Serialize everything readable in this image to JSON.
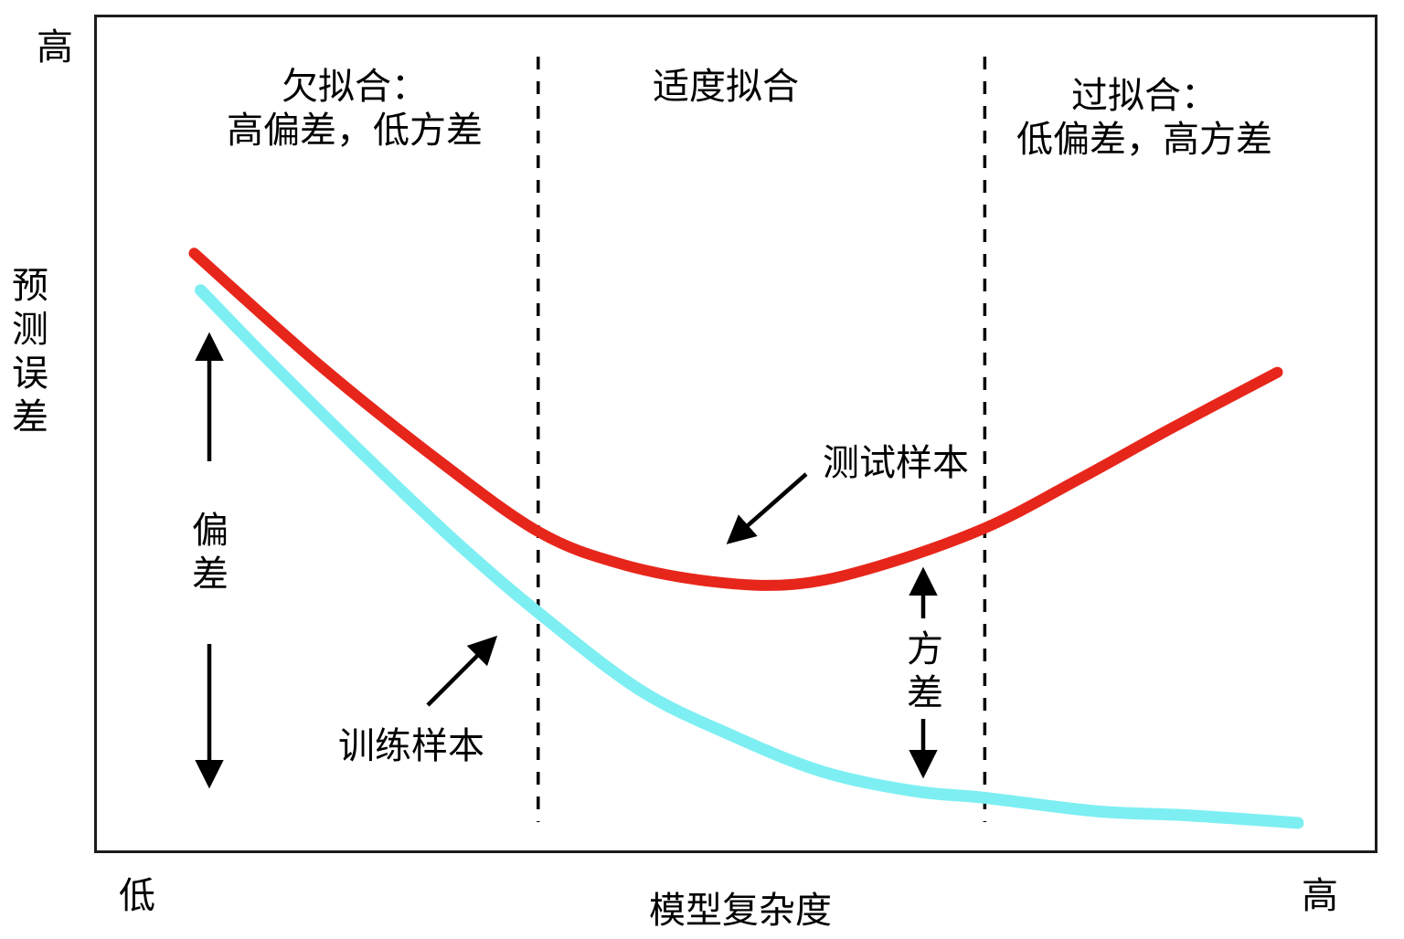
{
  "figure": {
    "y_axis": {
      "high_label": "高",
      "title": "预测误差"
    },
    "x_axis": {
      "low_label": "低",
      "title": "模型复杂度",
      "high_label": "高"
    },
    "regions": [
      {
        "title": "欠拟合：",
        "subtitle": "高偏差，低方差"
      },
      {
        "title": "适度拟合",
        "subtitle": ""
      },
      {
        "title": "过拟合：",
        "subtitle": "低偏差，高方差"
      }
    ],
    "annotations": {
      "bias": "偏差",
      "variance": "方差",
      "training": "训练样本",
      "test": "测试样本"
    },
    "colors": {
      "ink": "#000000",
      "test_curve": "#e7261b",
      "training_curve": "#7deff2"
    }
  },
  "chart_data": {
    "type": "line",
    "title": "",
    "xlabel": "模型复杂度",
    "ylabel": "预测误差",
    "x_axis_endpoint_labels": [
      "低",
      "高"
    ],
    "y_axis_top_label": "高",
    "numeric_axes": false,
    "units": "percent of plot area; x: 0=left 100=right, y: 0=bottom 100=top",
    "grid": false,
    "region_boundaries_x": [
      34.6,
      69.4
    ],
    "region_labels": [
      "欠拟合：高偏差，低方差",
      "适度拟合",
      "过拟合：低偏差，高方差"
    ],
    "series": [
      {
        "name": "测试样本",
        "color": "#e7261b",
        "points": [
          [
            7.8,
            71.5
          ],
          [
            17.6,
            58.1
          ],
          [
            26.9,
            46.7
          ],
          [
            34.7,
            38.2
          ],
          [
            41.1,
            34.4
          ],
          [
            48.2,
            32.3
          ],
          [
            54.6,
            32.0
          ],
          [
            61.0,
            34.1
          ],
          [
            69.4,
            38.7
          ],
          [
            76.7,
            44.5
          ],
          [
            83.8,
            50.5
          ],
          [
            92.2,
            57.3
          ]
        ]
      },
      {
        "name": "训练样本",
        "color": "#7deff2",
        "points": [
          [
            8.3,
            67.1
          ],
          [
            14.0,
            58.1
          ],
          [
            21.2,
            47.2
          ],
          [
            28.3,
            36.9
          ],
          [
            34.7,
            28.5
          ],
          [
            42.5,
            19.4
          ],
          [
            49.6,
            14.0
          ],
          [
            56.8,
            9.6
          ],
          [
            63.9,
            7.3
          ],
          [
            69.4,
            6.5
          ],
          [
            78.1,
            4.9
          ],
          [
            85.3,
            4.4
          ],
          [
            93.8,
            3.5
          ]
        ]
      }
    ],
    "legend_position": "inline-annotations"
  }
}
